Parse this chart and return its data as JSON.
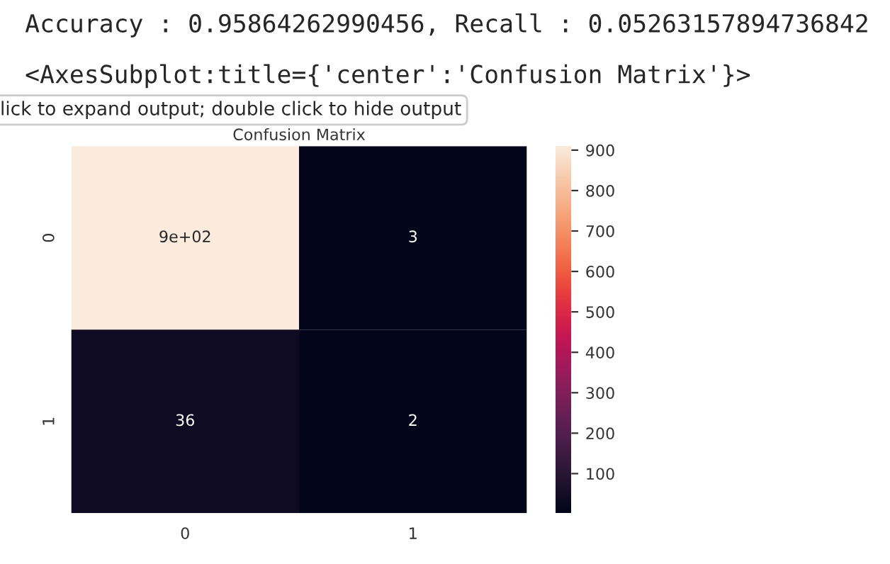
{
  "chart_data": {
    "type": "heatmap",
    "title": "Confusion Matrix",
    "annotations": [
      "Accuracy : 0.95864262990456, Recall : 0.05263157894736842",
      "<AxesSubplot:title={'center':'Confusion Matrix'}>",
      "lick to expand output; double click to hide output"
    ],
    "categories": [
      "0",
      "1"
    ],
    "y_categories": [
      "0",
      "1"
    ],
    "cells": [
      [
        910,
        3
      ],
      [
        36,
        2
      ]
    ],
    "cell_labels": [
      [
        "9e+02",
        "3"
      ],
      [
        "36",
        "2"
      ]
    ],
    "clim": [
      2,
      910
    ],
    "cticks": [
      100,
      200,
      300,
      400,
      500,
      600,
      700,
      800,
      900
    ]
  }
}
